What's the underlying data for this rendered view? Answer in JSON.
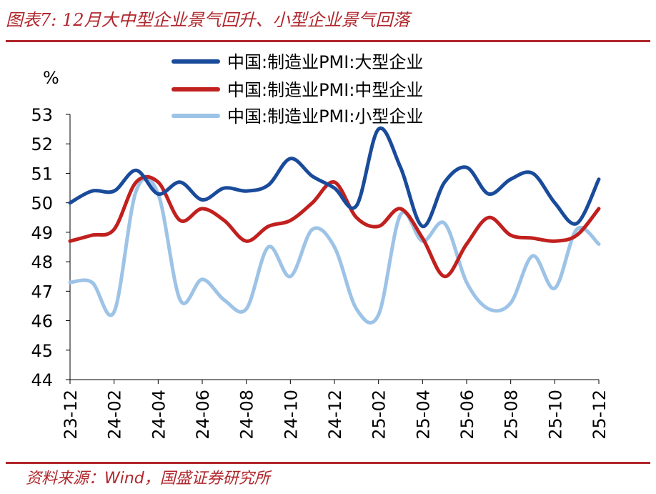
{
  "title": "图表7:  12月大中型企业景气回升、小型企业景气回落",
  "source": "资料来源：Wind，国盛证券研究所",
  "chart_data": {
    "type": "line",
    "ylabel": "%",
    "ylim": [
      44,
      53
    ],
    "yticks": [
      "53",
      "52",
      "51",
      "50",
      "49",
      "48",
      "47",
      "46",
      "45",
      "44"
    ],
    "tick_labels": [
      "23-12",
      "24-02",
      "24-04",
      "24-06",
      "24-08",
      "24-10",
      "24-12",
      "25-02",
      "25-04",
      "25-06",
      "25-08",
      "25-10",
      "25-12"
    ],
    "x": [
      "23-12",
      "24-01",
      "24-02",
      "24-03",
      "24-04",
      "24-05",
      "24-06",
      "24-07",
      "24-08",
      "24-09",
      "24-10",
      "24-11",
      "24-12",
      "25-01",
      "25-02",
      "25-03",
      "25-04",
      "25-05",
      "25-06",
      "25-07",
      "25-08",
      "25-09",
      "25-10",
      "25-11",
      "25-12"
    ],
    "legend_position": "top",
    "series": [
      {
        "name": "中国:制造业PMI:大型企业",
        "color": "#1a4b9b",
        "values": [
          50.0,
          50.4,
          50.4,
          51.1,
          50.3,
          50.7,
          50.1,
          50.5,
          50.4,
          50.6,
          51.5,
          50.9,
          50.5,
          49.9,
          52.5,
          51.2,
          49.2,
          50.7,
          51.2,
          50.3,
          50.8,
          51.0,
          50.0,
          49.3,
          50.8
        ]
      },
      {
        "name": "中国:制造业PMI:中型企业",
        "color": "#c0201e",
        "values": [
          48.7,
          48.9,
          49.1,
          50.7,
          50.7,
          49.4,
          49.8,
          49.4,
          48.7,
          49.2,
          49.4,
          50.0,
          50.7,
          49.5,
          49.2,
          49.8,
          48.8,
          47.5,
          48.6,
          49.5,
          48.9,
          48.8,
          48.7,
          48.9,
          49.8
        ]
      },
      {
        "name": "中国:制造业PMI:小型企业",
        "color": "#9dc3e6",
        "values": [
          47.3,
          47.3,
          46.3,
          50.4,
          50.3,
          46.7,
          47.4,
          46.7,
          46.4,
          48.5,
          47.5,
          49.1,
          48.5,
          46.4,
          46.2,
          49.6,
          48.7,
          49.3,
          47.3,
          46.4,
          46.6,
          48.2,
          47.1,
          49.1,
          48.6
        ]
      }
    ]
  }
}
